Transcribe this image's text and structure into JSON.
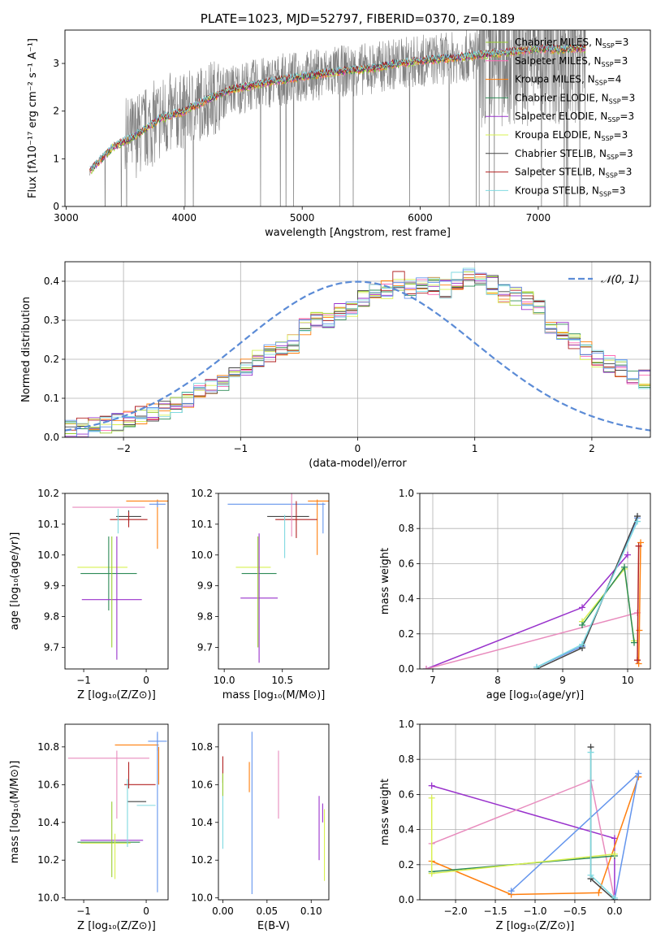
{
  "colors": {
    "chabrier_miles": "#9acd32",
    "salpeter_miles": "#ff69b4",
    "kroupa_miles": "#ff7f0e",
    "chabrier_elodie": "#2e8b57",
    "salpeter_elodie": "#9932cc",
    "kroupa_elodie": "#d8f050",
    "chabrier_stelib": "#444444",
    "salpeter_stelib": "#b22222",
    "kroupa_stelib": "#7fd9e0",
    "data_spectrum": "#808080",
    "normal_curve": "#5b8bd6",
    "mix_pink": "#e88bbd",
    "mix_purple": "#9932cc",
    "mix_green": "#90ee90",
    "mix_blue": "#6495ed"
  },
  "chart_data": [
    {
      "id": "spectrum",
      "type": "line",
      "title": "PLATE=1023, MJD=52797, FIBERID=0370, z=0.189",
      "xlabel": "wavelength [Angstrom, rest frame]",
      "ylabel": "Flux [fλ10⁻¹⁷ erg cm⁻² s⁻¹ A⁻¹]",
      "xlim": [
        2990,
        7950
      ],
      "ylim": [
        0,
        3.7
      ],
      "xticks": [
        "3000",
        "4000",
        "5000",
        "6000",
        "7000"
      ],
      "yticks": [
        "0",
        "1",
        "2",
        "3"
      ],
      "legend_position": "top-right",
      "continuum_x": [
        3200,
        3400,
        3600,
        3800,
        4000,
        4200,
        4400,
        4600,
        4800,
        5000,
        5200,
        5400,
        5600,
        5800,
        6000,
        6200,
        6400,
        6600,
        6800,
        7000,
        7200,
        7400
      ],
      "continuum_y": [
        0.75,
        1.25,
        1.5,
        1.85,
        2.0,
        2.25,
        2.45,
        2.55,
        2.65,
        2.72,
        2.8,
        2.85,
        2.9,
        3.0,
        3.05,
        3.1,
        3.15,
        3.2,
        3.25,
        3.3,
        3.3,
        3.32
      ],
      "series": [
        {
          "name": "Chabrier MILES, N$_{SSP}$=3",
          "label_main": "Chabrier MILES, N",
          "label_sub": "SSP",
          "label_tail": "=3",
          "color_key": "chabrier_miles"
        },
        {
          "name": "Salpeter MILES, N$_{SSP}$=3",
          "label_main": "Salpeter MILES, N",
          "label_sub": "SSP",
          "label_tail": "=3",
          "color_key": "salpeter_miles"
        },
        {
          "name": "Kroupa MILES, N$_{SSP}$=4",
          "label_main": "Kroupa MILES, N",
          "label_sub": "SSP",
          "label_tail": "=4",
          "color_key": "kroupa_miles"
        },
        {
          "name": "Chabrier ELODIE, N$_{SSP}$=3",
          "label_main": "Chabrier ELODIE, N",
          "label_sub": "SSP",
          "label_tail": "=3",
          "color_key": "chabrier_elodie"
        },
        {
          "name": "Salpeter ELODIE, N$_{SSP}$=3",
          "label_main": "Salpeter ELODIE, N",
          "label_sub": "SSP",
          "label_tail": "=3",
          "color_key": "salpeter_elodie"
        },
        {
          "name": "Kroupa ELODIE, N$_{SSP}$=3",
          "label_main": "Kroupa ELODIE, N",
          "label_sub": "SSP",
          "label_tail": "=3",
          "color_key": "kroupa_elodie"
        },
        {
          "name": "Chabrier STELIB, N$_{SSP}$=3",
          "label_main": "Chabrier STELIB, N",
          "label_sub": "SSP",
          "label_tail": "=3",
          "color_key": "chabrier_stelib"
        },
        {
          "name": "Salpeter STELIB, N$_{SSP}$=3",
          "label_main": "Salpeter STELIB, N",
          "label_sub": "SSP",
          "label_tail": "=3",
          "color_key": "salpeter_stelib"
        },
        {
          "name": "Kroupa STELIB, N$_{SSP}$=3",
          "label_main": "Kroupa STELIB, N",
          "label_sub": "SSP",
          "label_tail": "=3",
          "color_key": "kroupa_stelib"
        }
      ]
    },
    {
      "id": "residuals",
      "type": "line",
      "xlabel": "(data-model)/error",
      "ylabel": "Normed distribution",
      "xlim": [
        -2.5,
        2.5
      ],
      "ylim": [
        0,
        0.45
      ],
      "xticks": [
        "−2",
        "−1",
        "0",
        "1",
        "2"
      ],
      "yticks": [
        "0.0",
        "0.1",
        "0.2",
        "0.3",
        "0.4"
      ],
      "grid": true,
      "legend_position": "top-right",
      "legend_label": "𝒩(0, 1)",
      "bin_width": 0.1,
      "bins_start": -2.5,
      "histogram": [
        0.02,
        0.025,
        0.03,
        0.035,
        0.04,
        0.05,
        0.055,
        0.065,
        0.07,
        0.08,
        0.1,
        0.12,
        0.13,
        0.14,
        0.16,
        0.18,
        0.2,
        0.215,
        0.235,
        0.24,
        0.28,
        0.3,
        0.3,
        0.32,
        0.33,
        0.36,
        0.37,
        0.38,
        0.4,
        0.38,
        0.39,
        0.39,
        0.38,
        0.4,
        0.41,
        0.4,
        0.39,
        0.37,
        0.36,
        0.35,
        0.33,
        0.28,
        0.27,
        0.25,
        0.22,
        0.2,
        0.19,
        0.18,
        0.16,
        0.15,
        0.12,
        0.1,
        0.09,
        0.08,
        0.06,
        0.05,
        0.045,
        0.04,
        0.035,
        0.03
      ]
    },
    {
      "id": "age_vs_z",
      "type": "scatter",
      "xlabel": "Z [log₁₀(Z/Z⊙)]",
      "ylabel": "age [log₁₀(age/yr)]",
      "xlim": [
        -1.3,
        0.35
      ],
      "ylim": [
        9.63,
        10.2
      ],
      "xticks": [
        "−1",
        "0"
      ],
      "yticks": [
        "9.7",
        "9.8",
        "9.9",
        "10.0",
        "10.1",
        "10.2"
      ]
    },
    {
      "id": "age_vs_mass",
      "type": "scatter",
      "xlabel": "mass [log₁₀(M/M⊙)]",
      "ylabel": "",
      "xlim": [
        9.95,
        10.9
      ],
      "ylim": [
        9.63,
        10.2
      ],
      "xticks": [
        "10.0",
        "10.5"
      ],
      "yticks": [
        "9.7",
        "9.8",
        "9.9",
        "10.0",
        "10.1",
        "10.2"
      ]
    },
    {
      "id": "weight_vs_age",
      "type": "line",
      "xlabel": "age [log₁₀(age/yr)]",
      "ylabel": "mass weight",
      "xlim": [
        6.8,
        10.35
      ],
      "ylim": [
        0,
        1
      ],
      "xticks": [
        "7",
        "8",
        "9",
        "10"
      ],
      "yticks": [
        "0.0",
        "0.2",
        "0.4",
        "0.6",
        "0.8",
        "1.0"
      ],
      "grid": true,
      "series": [
        {
          "color_key": "salpeter_elodie",
          "x": [
            6.9,
            9.3,
            10.0
          ],
          "y": [
            0.0,
            0.35,
            0.65
          ]
        },
        {
          "color_key": "mix_pink",
          "x": [
            6.9,
            10.15
          ],
          "y": [
            0.0,
            0.32
          ]
        },
        {
          "color_key": "kroupa_elodie",
          "x": [
            9.3,
            9.95,
            10.1
          ],
          "y": [
            0.27,
            0.57,
            0.16
          ]
        },
        {
          "color_key": "chabrier_elodie",
          "x": [
            9.3,
            9.95,
            10.1
          ],
          "y": [
            0.25,
            0.58,
            0.15
          ]
        },
        {
          "color_key": "mix_blue",
          "x": [
            8.6,
            9.3,
            10.15
          ],
          "y": [
            0.01,
            0.13,
            0.86
          ]
        },
        {
          "color_key": "chabrier_stelib",
          "x": [
            8.6,
            9.3,
            10.15
          ],
          "y": [
            0.0,
            0.12,
            0.87
          ]
        },
        {
          "color_key": "kroupa_stelib",
          "x": [
            8.6,
            9.3,
            10.15
          ],
          "y": [
            0.01,
            0.14,
            0.84
          ]
        },
        {
          "color_key": "kroupa_miles",
          "x": [
            10.17,
            10.18,
            10.2
          ],
          "y": [
            0.03,
            0.22,
            0.72
          ]
        },
        {
          "color_key": "salpeter_stelib",
          "x": [
            10.15,
            10.17
          ],
          "y": [
            0.05,
            0.7
          ]
        }
      ]
    },
    {
      "id": "mass_vs_z",
      "type": "scatter",
      "xlabel": "Z [log₁₀(Z/Z⊙)]",
      "ylabel": "mass [log₁₀(M/M⊙)]",
      "xlim": [
        -1.3,
        0.35
      ],
      "ylim": [
        9.99,
        10.92
      ],
      "xticks": [
        "−1",
        "0"
      ],
      "yticks": [
        "10.0",
        "10.2",
        "10.4",
        "10.6",
        "10.8"
      ]
    },
    {
      "id": "mass_vs_ebv",
      "type": "scatter",
      "xlabel": "E(B-V)",
      "ylabel": "",
      "xlim": [
        -0.005,
        0.12
      ],
      "ylim": [
        9.99,
        10.92
      ],
      "xticks": [
        "0.00",
        "0.05",
        "0.10"
      ],
      "yticks": [
        "10.0",
        "10.2",
        "10.4",
        "10.6",
        "10.8"
      ]
    },
    {
      "id": "weight_vs_z",
      "type": "line",
      "xlabel": "Z [log₁₀(Z/Z⊙)]",
      "ylabel": "mass weight",
      "xlim": [
        -2.45,
        0.45
      ],
      "ylim": [
        0,
        1
      ],
      "xticks": [
        "−2.0",
        "−1.5",
        "−1.0",
        "−0.5",
        "0.0"
      ],
      "yticks": [
        "0.0",
        "0.2",
        "0.4",
        "0.6",
        "0.8",
        "1.0"
      ],
      "grid": true,
      "series": [
        {
          "color_key": "salpeter_elodie",
          "x": [
            -2.3,
            0.0,
            0.0
          ],
          "y": [
            0.65,
            0.35,
            0.0
          ]
        },
        {
          "color_key": "mix_pink",
          "x": [
            -2.3,
            -0.3,
            0.0
          ],
          "y": [
            0.32,
            0.68,
            0.0
          ]
        },
        {
          "color_key": "kroupa_miles",
          "x": [
            -2.3,
            -1.3,
            -0.2,
            0.3
          ],
          "y": [
            0.22,
            0.03,
            0.04,
            0.7
          ]
        },
        {
          "color_key": "mix_blue",
          "x": [
            -1.3,
            0.3,
            0.0
          ],
          "y": [
            0.05,
            0.72,
            0.0
          ]
        },
        {
          "color_key": "chabrier_elodie",
          "x": [
            -2.3,
            0.0
          ],
          "y": [
            0.16,
            0.25
          ]
        },
        {
          "color_key": "kroupa_elodie",
          "x": [
            -2.3,
            -2.3,
            0.0
          ],
          "y": [
            0.58,
            0.15,
            0.26
          ]
        },
        {
          "color_key": "chabrier_stelib",
          "x": [
            -0.3,
            -0.3,
            0.0
          ],
          "y": [
            0.87,
            0.12,
            0.0
          ]
        },
        {
          "color_key": "kroupa_stelib",
          "x": [
            -0.3,
            -0.3,
            0.0
          ],
          "y": [
            0.84,
            0.14,
            0.01
          ]
        }
      ]
    }
  ]
}
